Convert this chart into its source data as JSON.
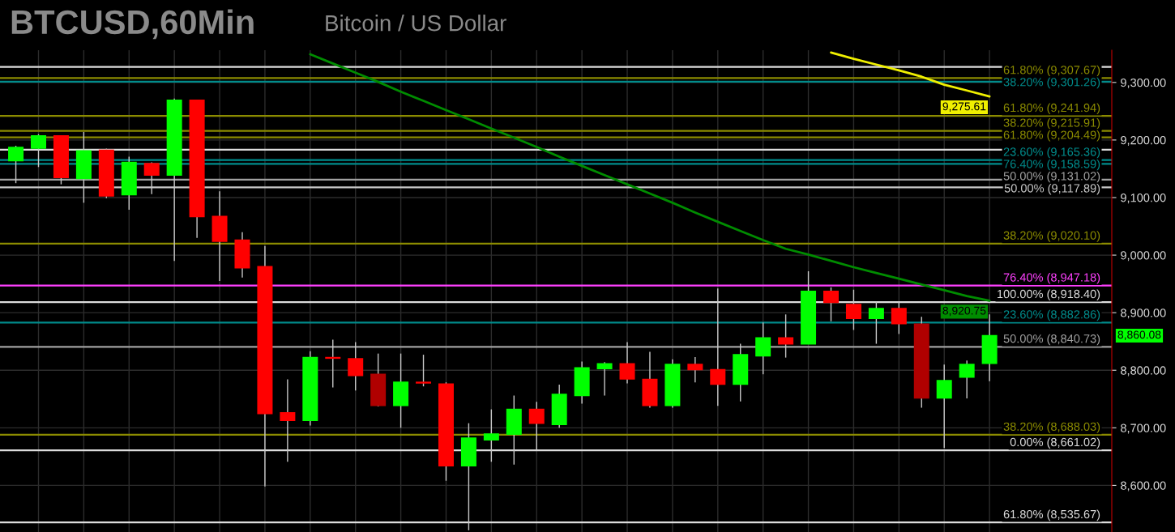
{
  "chart_data": {
    "type": "candlestick",
    "title": "BTCUSD,60Min",
    "subtitle": "Bitcoin / US Dollar",
    "categories": [
      null,
      null,
      null,
      null,
      null,
      null,
      null,
      null,
      null,
      null,
      null,
      null,
      null,
      null,
      null,
      null,
      null,
      null,
      null,
      null,
      null,
      null,
      null,
      null,
      null,
      null,
      null,
      null,
      null,
      null,
      null,
      null,
      null,
      null,
      null,
      null,
      null,
      null,
      null,
      null,
      null,
      null,
      null,
      null
    ],
    "ohlc": [
      [
        9164,
        9190,
        9125,
        9187
      ],
      [
        9186,
        9210,
        9153,
        9207
      ],
      [
        9207,
        9207,
        9123,
        9135
      ],
      [
        9133,
        9214,
        9091,
        9181
      ],
      [
        9182,
        9185,
        9099,
        9103
      ],
      [
        9105,
        9171,
        9079,
        9161
      ],
      [
        9159,
        9161,
        9106,
        9139
      ],
      [
        9139,
        9272,
        8990,
        9269
      ],
      [
        9269,
        9270,
        9030,
        9067
      ],
      [
        9067,
        9111,
        8955,
        9024
      ],
      [
        9026,
        9040,
        8961,
        8978
      ],
      [
        8980,
        9016,
        8598,
        8725
      ],
      [
        8726,
        8784,
        8641,
        8713
      ],
      [
        8713,
        8833,
        8704,
        8822
      ],
      [
        8822,
        8853,
        8770,
        8821
      ],
      [
        8820,
        8849,
        8765,
        8791
      ],
      [
        8793,
        8829,
        8737,
        8739
      ],
      [
        8739,
        8829,
        8700,
        8779
      ],
      [
        8779,
        8827,
        8772,
        8778
      ],
      [
        8776,
        8779,
        8608,
        8634
      ],
      [
        8634,
        8708,
        8522,
        8682
      ],
      [
        8679,
        8732,
        8641,
        8689
      ],
      [
        8689,
        8756,
        8636,
        8732
      ],
      [
        8732,
        8745,
        8662,
        8708
      ],
      [
        8706,
        8775,
        8700,
        8758
      ],
      [
        8756,
        8815,
        8742,
        8804
      ],
      [
        8803,
        8814,
        8756,
        8811
      ],
      [
        8811,
        8849,
        8777,
        8785
      ],
      [
        8784,
        8832,
        8735,
        8739
      ],
      [
        8739,
        8819,
        8735,
        8810
      ],
      [
        8810,
        8823,
        8779,
        8801
      ],
      [
        8801,
        8942,
        8738,
        8776
      ],
      [
        8776,
        8846,
        8746,
        8827
      ],
      [
        8825,
        8883,
        8793,
        8856
      ],
      [
        8856,
        8897,
        8822,
        8846
      ],
      [
        8846,
        8972,
        8846,
        8937
      ],
      [
        8937,
        8944,
        8885,
        8918
      ],
      [
        8914,
        8940,
        8870,
        8890
      ],
      [
        8890,
        8919,
        8846,
        8907
      ],
      [
        8907,
        8919,
        8863,
        8881
      ],
      [
        8880,
        8893,
        8735,
        8752
      ],
      [
        8752,
        8810,
        8665,
        8782
      ],
      [
        8788,
        8817,
        8751,
        8810
      ],
      [
        8812,
        8897,
        8781,
        8860.08
      ]
    ],
    "colors": [
      "#00ff00",
      "#00ff00",
      "#ff0000",
      "#00ff00",
      "#ff0000",
      "#00ff00",
      "#ff0000",
      "#00ff00",
      "#ff0000",
      "#ff0000",
      "#ff0000",
      "#ff0000",
      "#ff0000",
      "#00ff00",
      "#ff0000",
      "#ff0000",
      "#b00000",
      "#00ff00",
      "#ff0000",
      "#ff0000",
      "#00ff00",
      "#00ff00",
      "#00ff00",
      "#ff0000",
      "#00ff00",
      "#00ff00",
      "#00ff00",
      "#ff0000",
      "#ff0000",
      "#00ff00",
      "#ff0000",
      "#ff0000",
      "#00ff00",
      "#00ff00",
      "#ff0000",
      "#00ff00",
      "#ff0000",
      "#ff0000",
      "#00ff00",
      "#ff0000",
      "#b00000",
      "#00ff00",
      "#00ff00",
      "#00ff00"
    ],
    "series": [
      {
        "type": "line",
        "color": "#008c00",
        "values": [
          null,
          null,
          null,
          null,
          null,
          null,
          null,
          null,
          null,
          null,
          null,
          null,
          null,
          9349,
          9333,
          9317,
          9301,
          9284,
          9268,
          9252,
          9236,
          9220,
          9204,
          9188,
          9171,
          9155,
          9139,
          9123,
          9107,
          9091,
          9074,
          9058,
          9042,
          9026,
          9011,
          9001,
          8990,
          8979,
          8969,
          8959,
          8949,
          8939,
          8929,
          8920.75
        ],
        "value_labels": [
          null,
          null,
          null,
          null,
          null,
          null,
          null,
          null,
          null,
          null,
          null,
          null,
          null,
          null,
          null,
          null,
          null,
          null,
          null,
          null,
          null,
          null,
          null,
          null,
          null,
          null,
          null,
          null,
          null,
          null,
          null,
          null,
          null,
          null,
          null,
          null,
          null,
          null,
          null,
          null,
          null,
          null,
          null,
          "8,920.75"
        ]
      },
      {
        "type": "line",
        "color": "#f0f000",
        "values": [
          null,
          null,
          null,
          null,
          null,
          null,
          null,
          null,
          null,
          null,
          null,
          null,
          null,
          null,
          null,
          null,
          null,
          null,
          null,
          null,
          null,
          null,
          null,
          null,
          null,
          null,
          null,
          null,
          null,
          null,
          null,
          null,
          null,
          null,
          null,
          null,
          9352,
          9341,
          9331,
          9321,
          9310,
          9296,
          9286,
          9275.61
        ],
        "value_labels": [
          null,
          null,
          null,
          null,
          null,
          null,
          null,
          null,
          null,
          null,
          null,
          null,
          null,
          null,
          null,
          null,
          null,
          null,
          null,
          null,
          null,
          null,
          null,
          null,
          null,
          null,
          null,
          null,
          null,
          null,
          null,
          null,
          null,
          null,
          null,
          null,
          null,
          null,
          null,
          null,
          null,
          null,
          null,
          "9,275.61"
        ]
      }
    ],
    "ylim": [
      8519,
      9356
    ],
    "yticks": [
      {
        "value": 8600,
        "label": "8,600.00"
      },
      {
        "value": 8700,
        "label": "8,700.00"
      },
      {
        "value": 8800,
        "label": "8,800.00"
      },
      {
        "value": 8900,
        "label": "8,900.00"
      },
      {
        "value": 9000,
        "label": "9,000.00"
      },
      {
        "value": 9100,
        "label": "9,100.00"
      },
      {
        "value": 9200,
        "label": "9,200.00"
      },
      {
        "value": 9300,
        "label": "9,300.00"
      }
    ],
    "tick_labels": "y",
    "grid": true,
    "ref_lines": [
      {
        "axis": "y",
        "value": 9327,
        "color": "#dcdcdc"
      },
      {
        "axis": "y",
        "value": 9307.67,
        "label": "61.80% (9,307.67)",
        "color": "#8b8b00"
      },
      {
        "axis": "y",
        "value": 9301.26,
        "label": "38.20% (9,301.26)",
        "color": "#008b8b"
      },
      {
        "axis": "y",
        "value": 9241.94,
        "label": "61.80% (9,241.94)",
        "color": "#8b8b00"
      },
      {
        "axis": "y",
        "value": 9215.91,
        "label": "38.20% (9,215.91)",
        "color": "#8b8b00"
      },
      {
        "axis": "y",
        "value": 9204.49,
        "label": "61.80% (9,204.49)",
        "color": "#8b8b00"
      },
      {
        "axis": "y",
        "value": 9183,
        "color": "#dcdcdc"
      },
      {
        "axis": "y",
        "value": 9165.36,
        "label": "23.60% (9,165.36)",
        "color": "#008b8b"
      },
      {
        "axis": "y",
        "value": 9158.59,
        "label": "76.40% (9,158.59)",
        "color": "#008b8b"
      },
      {
        "axis": "y",
        "value": 9131.02,
        "label": "50.00% (9,131.02)",
        "color": "#a0a0a0"
      },
      {
        "axis": "y",
        "value": 9117.89,
        "label": "50.00% (9,117.89)",
        "color": "#c8c8c8"
      },
      {
        "axis": "y",
        "value": 9020.1,
        "label": "38.20% (9,020.10)",
        "color": "#8b8b00"
      },
      {
        "axis": "y",
        "value": 8947.18,
        "label": "76.40% (8,947.18)",
        "color": "#ff40ff"
      },
      {
        "axis": "y",
        "value": 8918.4,
        "label": "100.00% (8,918.40)",
        "color": "#dcdcdc"
      },
      {
        "axis": "y",
        "value": 8882.86,
        "label": "23.60% (8,882.86)",
        "color": "#008b8b"
      },
      {
        "axis": "y",
        "value": 8840.73,
        "label": "50.00% (8,840.73)",
        "color": "#a0a0a0"
      },
      {
        "axis": "y",
        "value": 8688.03,
        "label": "38.20% (8,688.03)",
        "color": "#8b8b00"
      },
      {
        "axis": "y",
        "value": 8661.02,
        "label": "0.00% (8,661.02)",
        "color": "#dcdcdc"
      },
      {
        "axis": "y",
        "value": 8535.67,
        "label": "61.80% (8,535.67)",
        "color": "#dcdcdc"
      }
    ],
    "value_labels": [
      null,
      null,
      null,
      null,
      null,
      null,
      null,
      null,
      null,
      null,
      null,
      null,
      null,
      null,
      null,
      null,
      null,
      null,
      null,
      null,
      null,
      null,
      null,
      null,
      null,
      null,
      null,
      null,
      null,
      null,
      null,
      null,
      null,
      null,
      null,
      null,
      null,
      null,
      null,
      null,
      null,
      null,
      null,
      "8,860.08"
    ]
  }
}
